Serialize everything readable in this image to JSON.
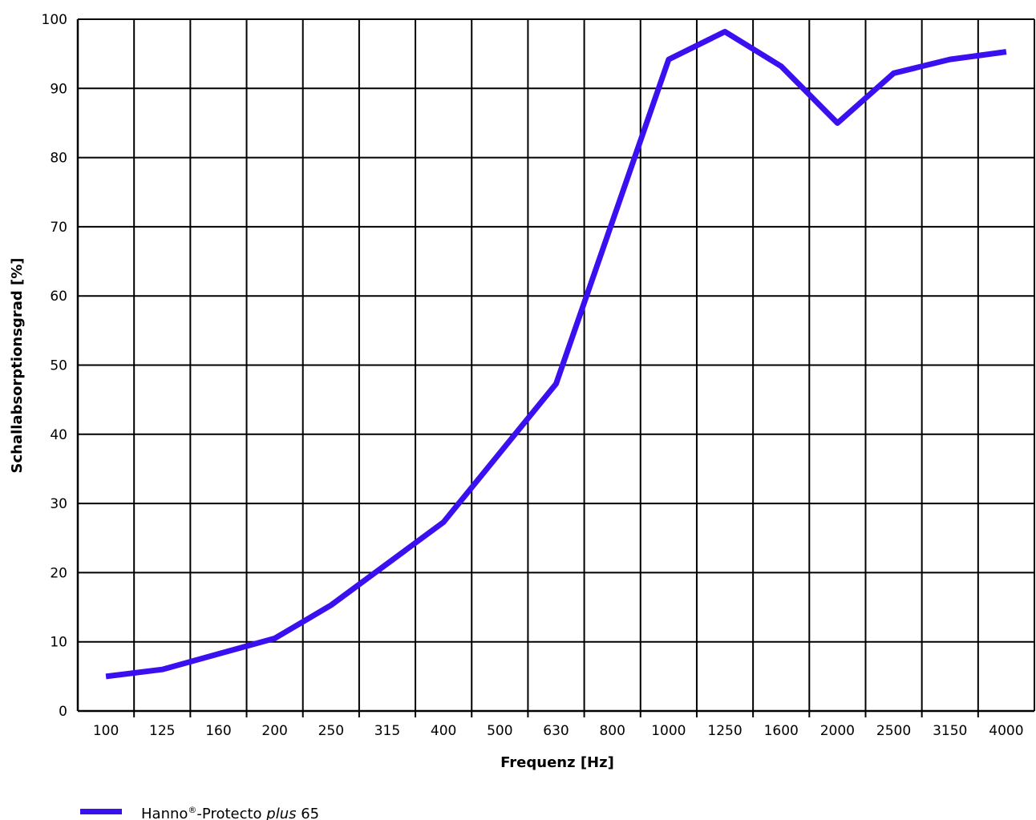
{
  "chart_data": {
    "type": "line",
    "xlabel": "Frequenz [Hz]",
    "ylabel": "Schallabsorptionsgrad  [%]",
    "ylim": [
      0,
      100
    ],
    "yticks": [
      0,
      10,
      20,
      30,
      40,
      50,
      60,
      70,
      80,
      90,
      100
    ],
    "categories": [
      "100",
      "125",
      "160",
      "200",
      "250",
      "315",
      "400",
      "500",
      "630",
      "800",
      "1000",
      "1250",
      "1600",
      "2000",
      "2500",
      "3150",
      "4000"
    ],
    "grid": true,
    "legend_position": "bottom-left",
    "series": [
      {
        "name_parts": {
          "main": "Hanno",
          "sup": "®",
          "mid": "-Protecto ",
          "italic": "plus",
          "end": " 65"
        },
        "color": "#3a0ff0",
        "values": [
          5,
          6,
          10.5,
          15.3,
          27.3,
          47.3,
          94.2,
          98.2,
          93.2,
          85,
          92.2,
          94.2,
          95.3
        ],
        "x": [
          "100",
          "125",
          "200",
          "250",
          "400",
          "630",
          "1000",
          "1250",
          "1600",
          "2000",
          "2500",
          "3150",
          "4000"
        ]
      }
    ]
  }
}
